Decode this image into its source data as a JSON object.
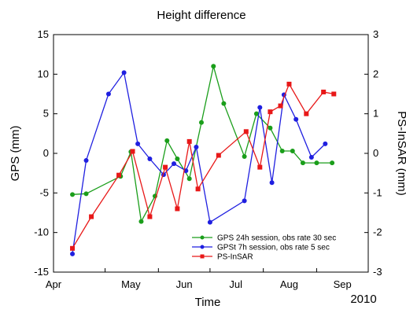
{
  "chart_data": {
    "type": "line",
    "title": "Height difference",
    "xlabel": "Time",
    "ylabel": "GPS (mm)",
    "y2label": "PS-InSAR (mm)",
    "year_label": "2010",
    "x_ticks": [
      "Apr",
      "May",
      "Jun",
      "Jul",
      "Aug",
      "Sep"
    ],
    "ylim": [
      -15,
      15
    ],
    "y_ticks": [
      -15,
      -10,
      -5,
      0,
      5,
      10,
      15
    ],
    "y2lim": [
      -3,
      3
    ],
    "y2_ticks": [
      -3,
      -2,
      -1,
      0,
      1,
      2,
      3
    ],
    "grid": false,
    "legend_position": "lower-right",
    "series": [
      {
        "name": "GPS 24h session, obs rate 30 sec",
        "color": "#1a9e1a",
        "marker": "circle",
        "axis": "left",
        "x": [
          "2010-04-12",
          "2010-04-20",
          "2010-05-10",
          "2010-05-16",
          "2010-05-22",
          "2010-05-30",
          "2010-06-06",
          "2010-06-12",
          "2010-06-19",
          "2010-06-26",
          "2010-07-03",
          "2010-07-09",
          "2010-07-21",
          "2010-07-28",
          "2010-08-05",
          "2010-08-12",
          "2010-08-18",
          "2010-08-24",
          "2010-09-01",
          "2010-09-10"
        ],
        "y": [
          -5.2,
          -5.1,
          -2.9,
          0.2,
          -8.6,
          -5.4,
          1.6,
          -0.7,
          -3.2,
          3.9,
          11.0,
          6.3,
          -0.4,
          5.0,
          3.2,
          0.3,
          0.3,
          -1.2,
          -1.2,
          -1.2
        ]
      },
      {
        "name": "GPSt 7h session, obs rate 5 sec",
        "color": "#1f1fe0",
        "marker": "circle",
        "axis": "left",
        "x": [
          "2010-04-12",
          "2010-04-20",
          "2010-05-03",
          "2010-05-12",
          "2010-05-20",
          "2010-05-27",
          "2010-06-04",
          "2010-06-10",
          "2010-06-17",
          "2010-06-23",
          "2010-07-01",
          "2010-07-21",
          "2010-07-30",
          "2010-08-06",
          "2010-08-13",
          "2010-08-20",
          "2010-08-29",
          "2010-09-06"
        ],
        "y": [
          -12.7,
          -0.9,
          7.5,
          10.2,
          1.2,
          -0.7,
          -2.7,
          -1.3,
          -2.2,
          0.8,
          -8.7,
          -6.0,
          5.8,
          -3.7,
          7.4,
          4.3,
          -0.5,
          1.2
        ]
      },
      {
        "name": "PS-InSAR",
        "color": "#e81818",
        "marker": "square",
        "axis": "right",
        "x": [
          "2010-04-12",
          "2010-04-23",
          "2010-05-09",
          "2010-05-17",
          "2010-05-27",
          "2010-06-05",
          "2010-06-12",
          "2010-06-19",
          "2010-06-24",
          "2010-07-06",
          "2010-07-22",
          "2010-07-30",
          "2010-08-05",
          "2010-08-11",
          "2010-08-16",
          "2010-08-26",
          "2010-09-05",
          "2010-09-11"
        ],
        "y": [
          -2.4,
          -1.6,
          -0.55,
          0.05,
          -1.6,
          -0.35,
          -1.4,
          0.3,
          -0.9,
          -0.05,
          0.55,
          -0.35,
          1.05,
          1.2,
          1.75,
          1.0,
          1.55,
          1.5
        ]
      }
    ]
  }
}
